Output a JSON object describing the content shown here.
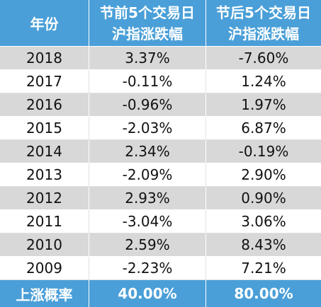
{
  "table": {
    "header": {
      "col_year": "年份",
      "col_before_line1": "节前5个交易日",
      "col_before_line2": "沪指涨跌幅",
      "col_after_line1": "节后5个交易日",
      "col_after_line2": "沪指涨跌幅"
    },
    "rows": [
      {
        "year": "2018",
        "before": "3.37%",
        "after": "-7.60%"
      },
      {
        "year": "2017",
        "before": "-0.11%",
        "after": "1.24%"
      },
      {
        "year": "2016",
        "before": "-0.96%",
        "after": "1.97%"
      },
      {
        "year": "2015",
        "before": "-2.03%",
        "after": "6.87%"
      },
      {
        "year": "2014",
        "before": "2.34%",
        "after": "-0.19%"
      },
      {
        "year": "2013",
        "before": "-2.09%",
        "after": "2.90%"
      },
      {
        "year": "2012",
        "before": "2.93%",
        "after": "0.90%"
      },
      {
        "year": "2011",
        "before": "-3.04%",
        "after": "3.06%"
      },
      {
        "year": "2010",
        "before": "2.59%",
        "after": "8.43%"
      },
      {
        "year": "2009",
        "before": "-2.23%",
        "after": "7.21%"
      }
    ],
    "footer": {
      "label": "上涨概率",
      "before": "40.00%",
      "after": "80.00%"
    }
  },
  "colors": {
    "header_blue": "#4a9fd8",
    "row_gray": "#d8d8d8",
    "row_white": "#ffffff"
  }
}
